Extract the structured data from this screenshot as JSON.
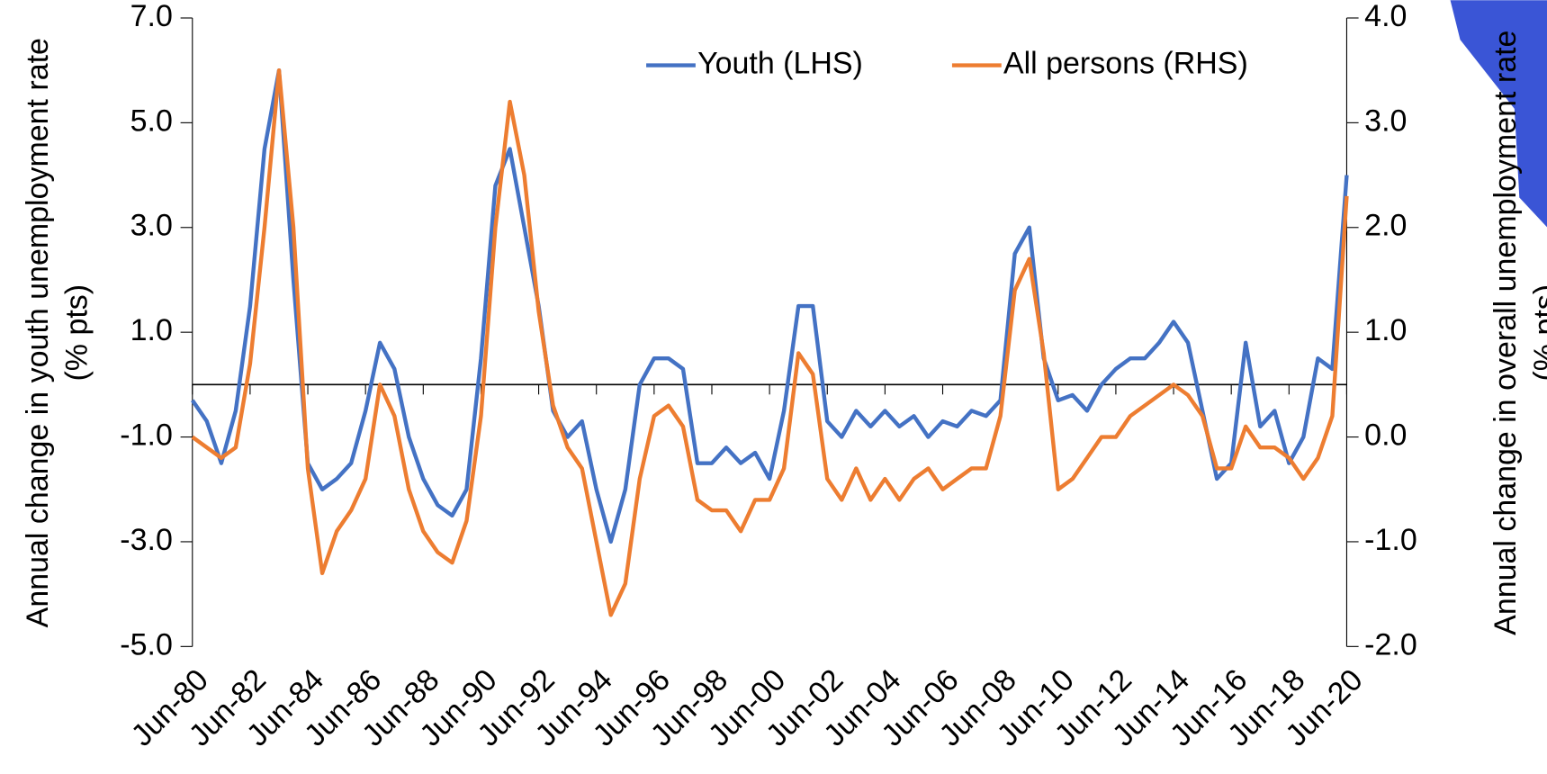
{
  "chart_data": {
    "type": "line",
    "y_label": "Annual change in youth unemployment rate (% pts)",
    "y2_label": "Annual change in overall unemployment rate (% pts)",
    "categories": [
      "Jun-80",
      null,
      null,
      null,
      "Jun-82",
      null,
      null,
      null,
      "Jun-84",
      null,
      null,
      null,
      "Jun-86",
      null,
      null,
      null,
      "Jun-88",
      null,
      null,
      null,
      "Jun-90",
      null,
      null,
      null,
      "Jun-92",
      null,
      null,
      null,
      "Jun-94",
      null,
      null,
      null,
      "Jun-96",
      null,
      null,
      null,
      "Jun-98",
      null,
      null,
      null,
      "Jun-00",
      null,
      null,
      null,
      "Jun-02",
      null,
      null,
      null,
      "Jun-04",
      null,
      null,
      null,
      "Jun-06",
      null,
      null,
      null,
      "Jun-08",
      null,
      null,
      null,
      "Jun-10",
      null,
      null,
      null,
      "Jun-12",
      null,
      null,
      null,
      "Jun-14",
      null,
      null,
      null,
      "Jun-16",
      null,
      null,
      null,
      "Jun-18",
      null,
      null,
      null,
      "Jun-20"
    ],
    "series": [
      {
        "name": "Youth (LHS)",
        "color": "#4472c4",
        "axis": "y",
        "values": [
          -0.3,
          -0.7,
          -1.5,
          -0.5,
          1.5,
          4.5,
          6.0,
          2.0,
          -1.5,
          -2.0,
          -1.8,
          -1.5,
          -0.5,
          0.8,
          0.3,
          -1.0,
          -1.8,
          -2.3,
          -2.5,
          -2.0,
          0.5,
          3.8,
          4.5,
          3.0,
          1.5,
          -0.5,
          -1.0,
          -0.7,
          -2.0,
          -3.0,
          -2.0,
          0.0,
          0.5,
          0.5,
          0.3,
          -1.5,
          -1.5,
          -1.2,
          -1.5,
          -1.3,
          -1.8,
          -0.5,
          1.5,
          1.5,
          -0.7,
          -1.0,
          -0.5,
          -0.8,
          -0.5,
          -0.8,
          -0.6,
          -1.0,
          -0.7,
          -0.8,
          -0.5,
          -0.6,
          -0.3,
          2.5,
          3.0,
          0.5,
          -0.3,
          -0.2,
          -0.5,
          0.0,
          0.3,
          0.5,
          0.5,
          0.8,
          1.2,
          0.8,
          -0.5,
          -1.8,
          -1.5,
          0.8,
          -0.8,
          -0.5,
          -1.5,
          -1.0,
          0.5,
          0.3,
          4.0
        ]
      },
      {
        "name": "All persons (RHS)",
        "color": "#ed7d31",
        "axis": "y2",
        "values": [
          0.0,
          -0.1,
          -0.2,
          -0.1,
          0.7,
          2.0,
          3.5,
          2.0,
          -0.3,
          -1.3,
          -0.9,
          -0.7,
          -0.4,
          0.5,
          0.2,
          -0.5,
          -0.9,
          -1.1,
          -1.2,
          -0.8,
          0.2,
          2.0,
          3.2,
          2.5,
          1.2,
          0.3,
          -0.1,
          -0.3,
          -1.0,
          -1.7,
          -1.4,
          -0.4,
          0.2,
          0.3,
          0.1,
          -0.6,
          -0.7,
          -0.7,
          -0.9,
          -0.6,
          -0.6,
          -0.3,
          0.8,
          0.6,
          -0.4,
          -0.6,
          -0.3,
          -0.6,
          -0.4,
          -0.6,
          -0.4,
          -0.3,
          -0.5,
          -0.4,
          -0.3,
          -0.3,
          0.2,
          1.4,
          1.7,
          0.8,
          -0.5,
          -0.4,
          -0.2,
          0.0,
          0.0,
          0.2,
          0.3,
          0.4,
          0.5,
          0.4,
          0.2,
          -0.3,
          -0.3,
          0.1,
          -0.1,
          -0.1,
          -0.2,
          -0.4,
          -0.2,
          0.2,
          2.3
        ]
      }
    ],
    "ylim": [
      -5,
      7
    ],
    "yticks": [
      {
        "value": 7,
        "label": "7.0"
      },
      {
        "value": 5,
        "label": "5.0"
      },
      {
        "value": 3,
        "label": "3.0"
      },
      {
        "value": 1,
        "label": "1.0"
      },
      {
        "value": -1,
        "label": "-1.0"
      },
      {
        "value": -3,
        "label": "-3.0"
      },
      {
        "value": -5,
        "label": "-5.0"
      }
    ],
    "y2lim": [
      -2,
      4
    ],
    "y2ticks": [
      {
        "value": 4,
        "label": "4.0"
      },
      {
        "value": 3,
        "label": "3.0"
      },
      {
        "value": 2,
        "label": "2.0"
      },
      {
        "value": 1,
        "label": "1.0"
      },
      {
        "value": 0,
        "label": "0.0"
      },
      {
        "value": -1,
        "label": "-1.0"
      },
      {
        "value": -2,
        "label": "-2.0"
      }
    ],
    "legend": "top"
  }
}
